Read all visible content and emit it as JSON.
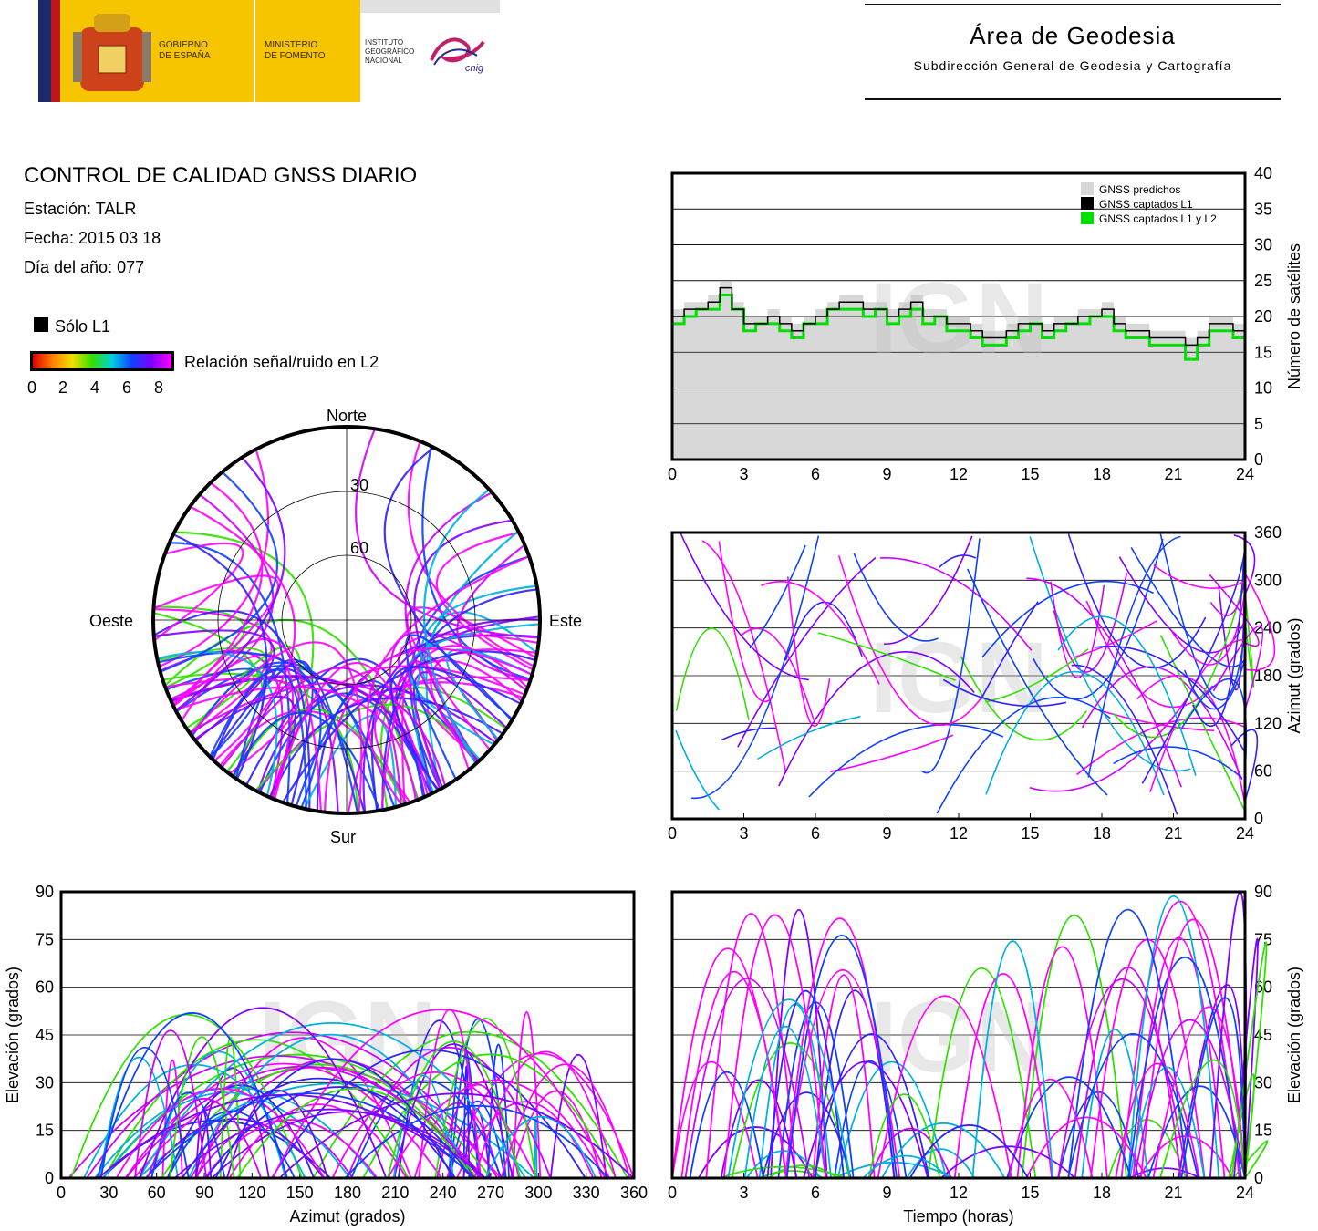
{
  "header": {
    "gov_line1": "GOBIERNO",
    "gov_line2": "DE ESPAÑA",
    "min_line1": "MINISTERIO",
    "min_line2": "DE FOMENTO",
    "inst_line1": "INSTITUTO",
    "inst_line2": "GEOGRÁFICO",
    "inst_line3": "NACIONAL",
    "logo_text": "cnig",
    "area_title": "Área de Geodesia",
    "area_subtitle": "Subdirección General de Geodesia y Cartografía"
  },
  "info": {
    "title": "CONTROL DE CALIDAD GNSS DIARIO",
    "station": "Estación: TALR",
    "date": "Fecha: 2015 03 18",
    "doy": "Día del año: 077"
  },
  "legend": {
    "l1_only": "Sólo L1",
    "snr_label": "Relación señal/ruido en L2",
    "snr_ticks": [
      "0",
      "2",
      "4",
      "6",
      "8"
    ],
    "colors": [
      "#e00000",
      "#ff8000",
      "#f0e000",
      "#30e000",
      "#00d0e0",
      "#1040ff",
      "#8000ff",
      "#ff00ff"
    ]
  },
  "skyplot": {
    "north": "Norte",
    "south": "Sur",
    "east": "Este",
    "west": "Oeste",
    "ring30": "30",
    "ring60": "60"
  },
  "watermark": "IGN",
  "chart_data": [
    {
      "type": "line",
      "id": "satellites",
      "xticks": [
        "0",
        "3",
        "6",
        "9",
        "12",
        "15",
        "18",
        "21",
        "24"
      ],
      "yticks": [
        "0",
        "5",
        "10",
        "15",
        "20",
        "25",
        "30",
        "35",
        "40"
      ],
      "ylabel": "Número de satélites",
      "xlim": [
        0,
        24
      ],
      "ylim": [
        0,
        40
      ],
      "legend": [
        "GNSS predichos",
        "GNSS captados L1",
        "GNSS captados L1 y L2"
      ],
      "series_colors": [
        "#d8d8d8",
        "#000000",
        "#00e000"
      ],
      "x": [
        0,
        0.5,
        1,
        1.5,
        2,
        2.5,
        3,
        3.5,
        4,
        4.5,
        5,
        5.5,
        6,
        6.5,
        7,
        7.5,
        8,
        8.5,
        9,
        9.5,
        10,
        10.5,
        11,
        11.5,
        12,
        12.5,
        13,
        13.5,
        14,
        14.5,
        15,
        15.5,
        16,
        16.5,
        17,
        17.5,
        18,
        18.5,
        19,
        19.5,
        20,
        20.5,
        21,
        21.5,
        22,
        22.5,
        23,
        23.5,
        24
      ],
      "predicted": [
        21,
        22,
        22,
        23,
        25,
        22,
        20,
        20,
        21,
        20,
        19,
        20,
        21,
        22,
        23,
        23,
        22,
        22,
        21,
        22,
        23,
        21,
        21,
        20,
        20,
        19,
        18,
        18,
        19,
        20,
        20,
        19,
        20,
        20,
        21,
        21,
        22,
        20,
        19,
        19,
        18,
        18,
        18,
        17,
        18,
        20,
        20,
        19,
        21
      ],
      "captured_l1": [
        20,
        21,
        21,
        22,
        24,
        21,
        19,
        19,
        20,
        19,
        18,
        19,
        20,
        21,
        22,
        22,
        21,
        21,
        20,
        21,
        22,
        20,
        20,
        19,
        19,
        18,
        17,
        17,
        18,
        19,
        19,
        18,
        19,
        19,
        20,
        20,
        21,
        19,
        18,
        18,
        17,
        17,
        17,
        16,
        17,
        19,
        19,
        18,
        20
      ],
      "captured_l1_l2": [
        19,
        20,
        21,
        21,
        23,
        21,
        18,
        19,
        19,
        18,
        17,
        19,
        19,
        21,
        21,
        21,
        20,
        21,
        19,
        20,
        21,
        19,
        20,
        18,
        18,
        17,
        16,
        16,
        17,
        18,
        19,
        17,
        18,
        19,
        19,
        20,
        20,
        18,
        17,
        17,
        16,
        16,
        16,
        14,
        16,
        18,
        18,
        17,
        19
      ]
    },
    {
      "type": "scatter",
      "id": "azimuth-time",
      "xticks": [
        "0",
        "3",
        "6",
        "9",
        "12",
        "15",
        "18",
        "21",
        "24"
      ],
      "yticks": [
        "0",
        "60",
        "120",
        "180",
        "240",
        "300",
        "360"
      ],
      "ylabel": "Azimut (grados)",
      "xlim": [
        0,
        24
      ],
      "ylim": [
        0,
        360
      ]
    },
    {
      "type": "scatter",
      "id": "elevation-azimuth",
      "xticks": [
        "0",
        "30",
        "60",
        "90",
        "120",
        "150",
        "180",
        "210",
        "240",
        "270",
        "300",
        "330",
        "360"
      ],
      "yticks": [
        "0",
        "15",
        "30",
        "45",
        "60",
        "75",
        "90"
      ],
      "xlabel": "Azimut (grados)",
      "ylabel": "Elevación (grados)",
      "xlim": [
        0,
        360
      ],
      "ylim": [
        0,
        90
      ]
    },
    {
      "type": "scatter",
      "id": "elevation-time",
      "xticks": [
        "0",
        "3",
        "6",
        "9",
        "12",
        "15",
        "18",
        "21",
        "24"
      ],
      "yticks": [
        "0",
        "15",
        "30",
        "45",
        "60",
        "75",
        "90"
      ],
      "xlabel": "Tiempo (horas)",
      "ylabel": "Elevación (grados)",
      "xlim": [
        0,
        24
      ],
      "ylim": [
        0,
        90
      ]
    }
  ]
}
